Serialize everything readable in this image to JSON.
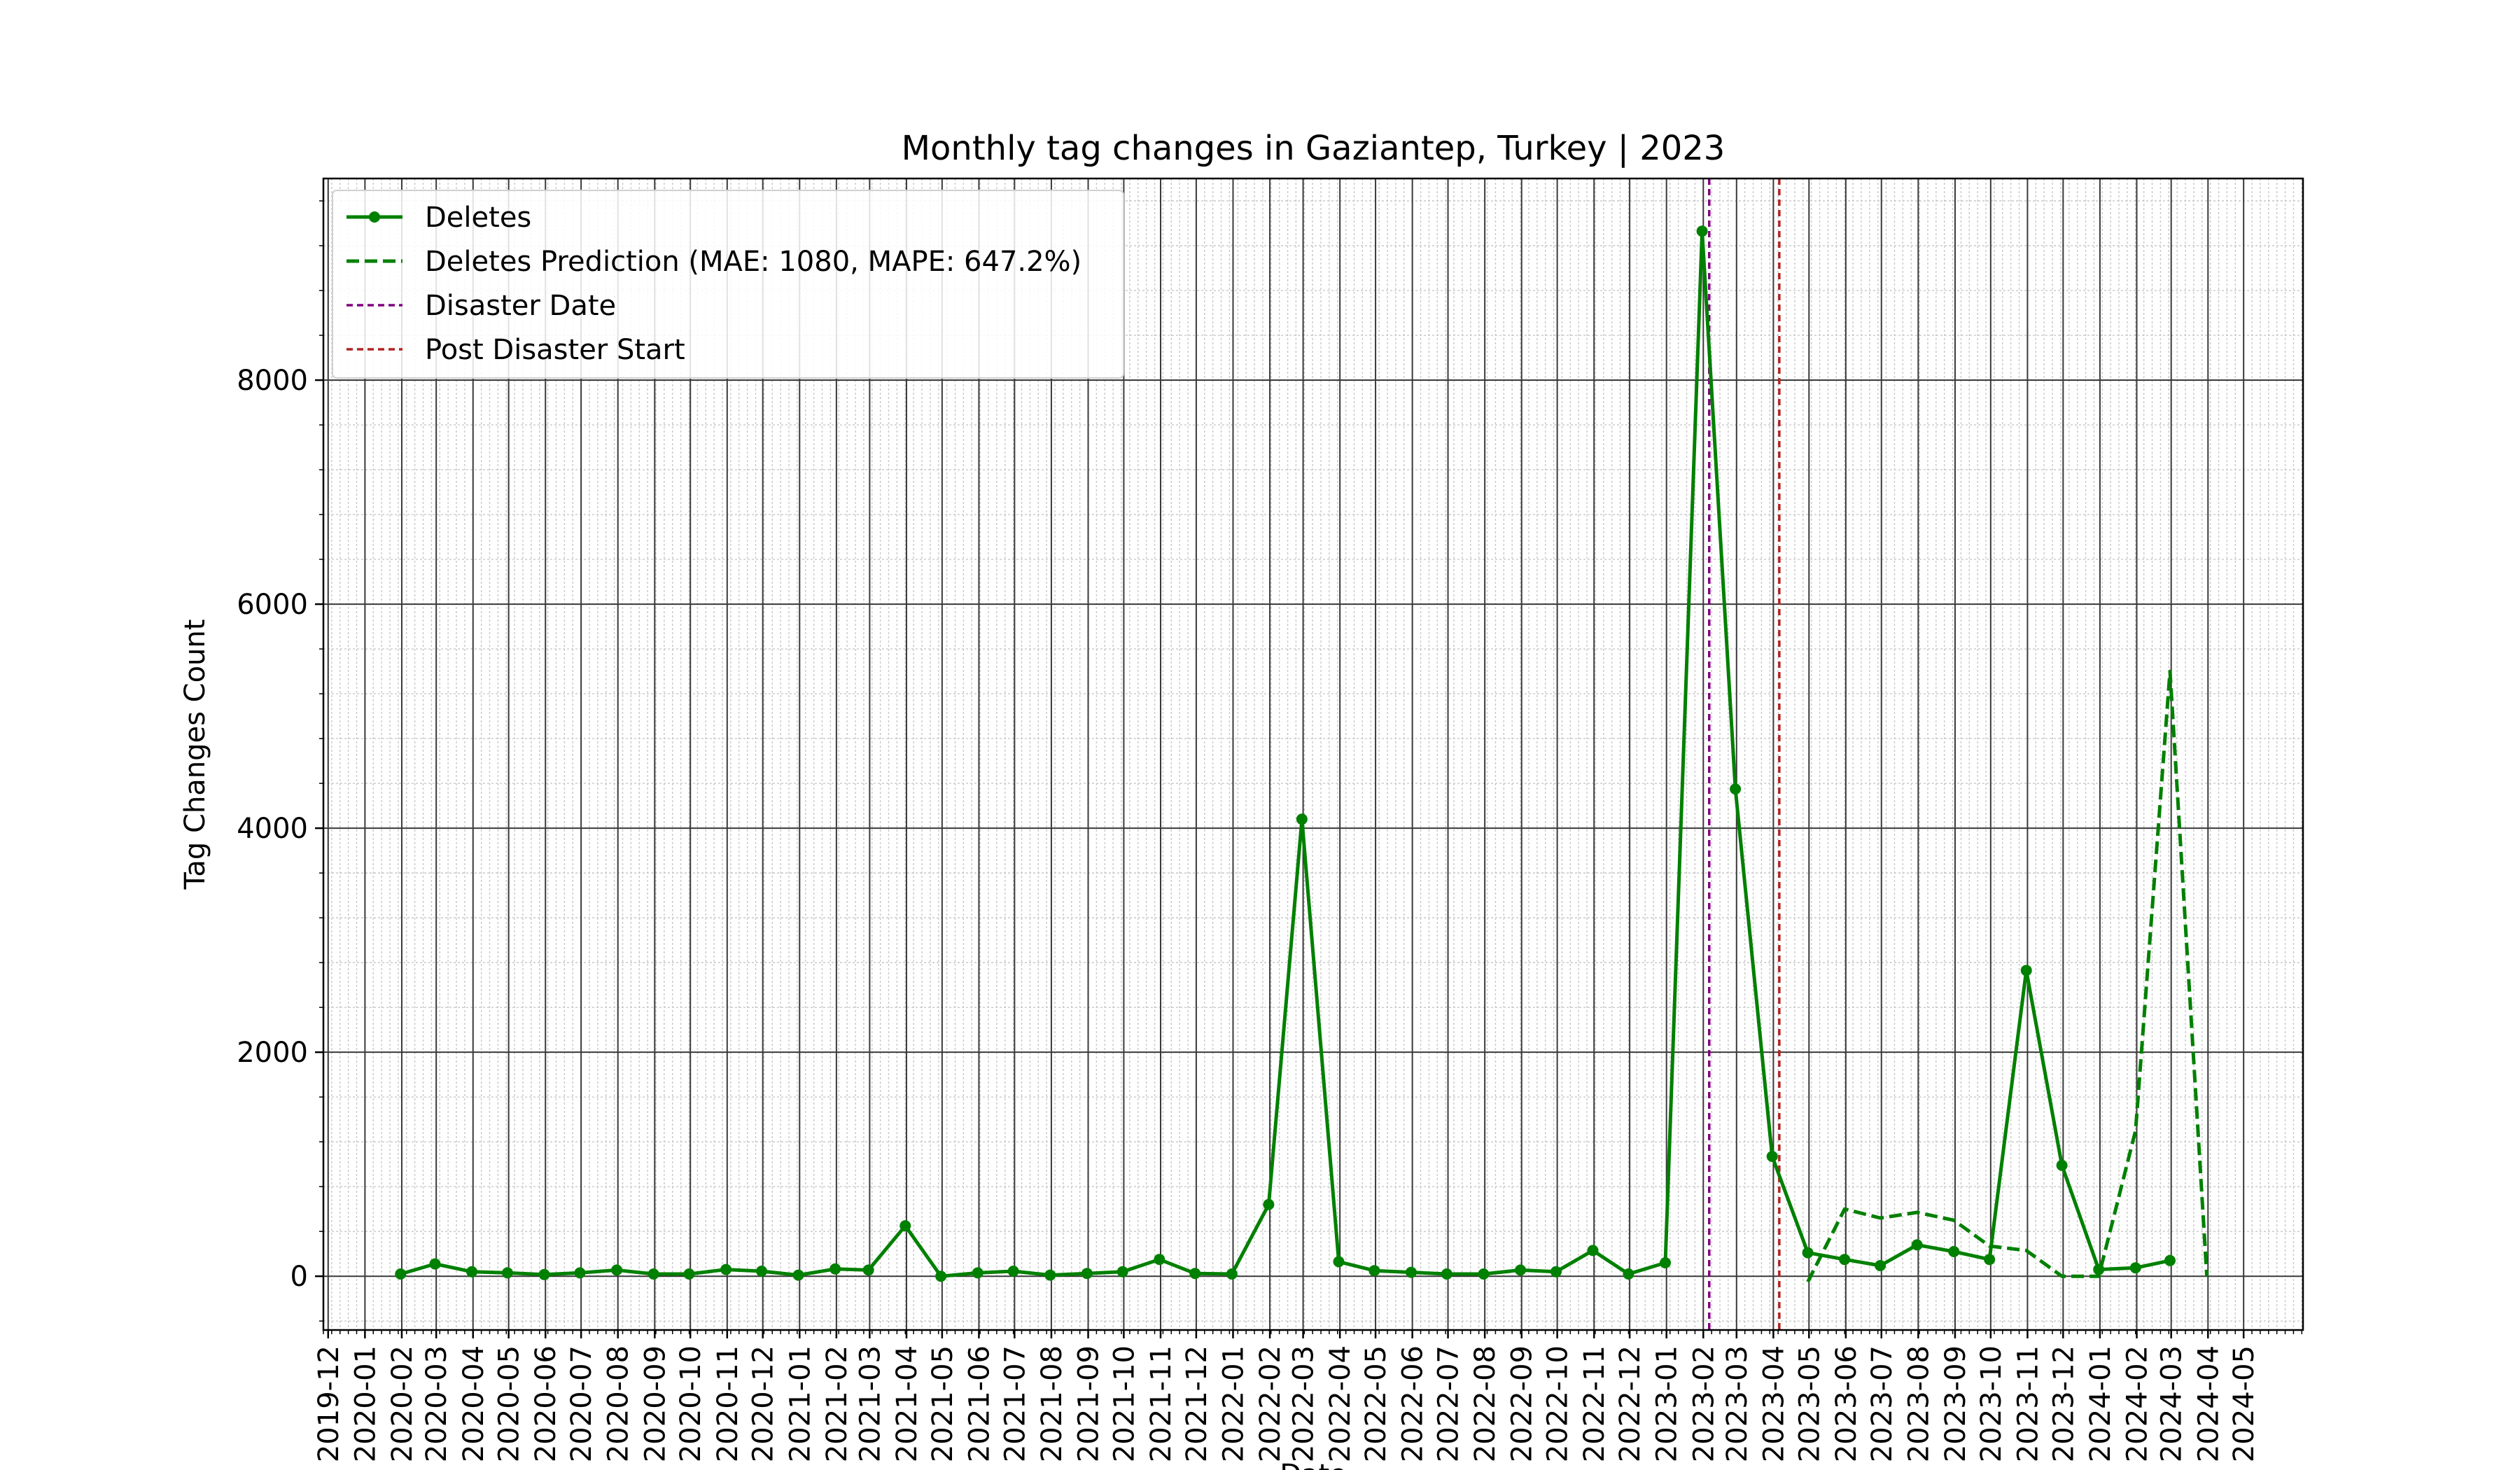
{
  "chart_data": {
    "type": "line",
    "title": "Monthly tag changes in Gaziantep, Turkey | 2023",
    "xlabel": "Date",
    "ylabel": "Tag Changes Count",
    "xlim": [
      "2019-11-27",
      "2024-06-20"
    ],
    "ylim": [
      -480,
      9800
    ],
    "x_ticks": [
      "2019-12",
      "2020-01",
      "2020-02",
      "2020-03",
      "2020-04",
      "2020-05",
      "2020-06",
      "2020-07",
      "2020-08",
      "2020-09",
      "2020-10",
      "2020-11",
      "2020-12",
      "2021-01",
      "2021-02",
      "2021-03",
      "2021-04",
      "2021-05",
      "2021-06",
      "2021-07",
      "2021-08",
      "2021-09",
      "2021-10",
      "2021-11",
      "2021-12",
      "2022-01",
      "2022-02",
      "2022-03",
      "2022-04",
      "2022-05",
      "2022-06",
      "2022-07",
      "2022-08",
      "2022-09",
      "2022-10",
      "2022-11",
      "2022-12",
      "2023-01",
      "2023-02",
      "2023-03",
      "2023-04",
      "2023-05",
      "2023-06",
      "2023-07",
      "2023-08",
      "2023-09",
      "2023-10",
      "2023-11",
      "2023-12",
      "2024-01",
      "2024-02",
      "2024-03",
      "2024-04",
      "2024-05"
    ],
    "y_ticks": [
      0,
      2000,
      4000,
      6000,
      8000
    ],
    "grid": true,
    "legend_position": "top-left",
    "series": [
      {
        "name": "Deletes",
        "color": "#008000",
        "style": "solid-markers",
        "points": [
          {
            "x": "2020-01-31",
            "y": 20
          },
          {
            "x": "2020-02-29",
            "y": 110
          },
          {
            "x": "2020-03-31",
            "y": 40
          },
          {
            "x": "2020-04-30",
            "y": 30
          },
          {
            "x": "2020-05-31",
            "y": 15
          },
          {
            "x": "2020-06-30",
            "y": 30
          },
          {
            "x": "2020-07-31",
            "y": 55
          },
          {
            "x": "2020-08-31",
            "y": 20
          },
          {
            "x": "2020-09-30",
            "y": 20
          },
          {
            "x": "2020-10-31",
            "y": 60
          },
          {
            "x": "2020-11-30",
            "y": 45
          },
          {
            "x": "2020-12-31",
            "y": 10
          },
          {
            "x": "2021-01-31",
            "y": 65
          },
          {
            "x": "2021-02-28",
            "y": 55
          },
          {
            "x": "2021-03-31",
            "y": 450
          },
          {
            "x": "2021-04-30",
            "y": 0
          },
          {
            "x": "2021-05-31",
            "y": 30
          },
          {
            "x": "2021-06-30",
            "y": 45
          },
          {
            "x": "2021-07-31",
            "y": 10
          },
          {
            "x": "2021-08-31",
            "y": 25
          },
          {
            "x": "2021-09-30",
            "y": 40
          },
          {
            "x": "2021-10-31",
            "y": 150
          },
          {
            "x": "2021-11-30",
            "y": 25
          },
          {
            "x": "2021-12-31",
            "y": 20
          },
          {
            "x": "2022-01-31",
            "y": 640
          },
          {
            "x": "2022-02-28",
            "y": 4080
          },
          {
            "x": "2022-03-31",
            "y": 130
          },
          {
            "x": "2022-04-30",
            "y": 50
          },
          {
            "x": "2022-05-31",
            "y": 35
          },
          {
            "x": "2022-06-30",
            "y": 20
          },
          {
            "x": "2022-07-31",
            "y": 20
          },
          {
            "x": "2022-08-31",
            "y": 55
          },
          {
            "x": "2022-09-30",
            "y": 40
          },
          {
            "x": "2022-10-31",
            "y": 230
          },
          {
            "x": "2022-11-30",
            "y": 20
          },
          {
            "x": "2022-12-31",
            "y": 120
          },
          {
            "x": "2023-01-31",
            "y": 9330
          },
          {
            "x": "2023-02-28",
            "y": 4350
          },
          {
            "x": "2023-03-31",
            "y": 1070
          },
          {
            "x": "2023-04-30",
            "y": 210
          },
          {
            "x": "2023-05-31",
            "y": 150
          },
          {
            "x": "2023-06-30",
            "y": 95
          },
          {
            "x": "2023-07-31",
            "y": 280
          },
          {
            "x": "2023-08-31",
            "y": 220
          },
          {
            "x": "2023-09-30",
            "y": 150
          },
          {
            "x": "2023-10-31",
            "y": 2730
          },
          {
            "x": "2023-11-30",
            "y": 990
          },
          {
            "x": "2023-12-31",
            "y": 60
          },
          {
            "x": "2024-01-31",
            "y": 75
          },
          {
            "x": "2024-02-29",
            "y": 140
          }
        ]
      },
      {
        "name": "Deletes Prediction (MAE: 1080, MAPE: 647.2%)",
        "color": "#008000",
        "style": "dashed",
        "points": [
          {
            "x": "2023-04-30",
            "y": -50
          },
          {
            "x": "2023-05-31",
            "y": 600
          },
          {
            "x": "2023-06-30",
            "y": 520
          },
          {
            "x": "2023-07-31",
            "y": 570
          },
          {
            "x": "2023-08-31",
            "y": 500
          },
          {
            "x": "2023-09-30",
            "y": 270
          },
          {
            "x": "2023-10-31",
            "y": 230
          },
          {
            "x": "2023-11-30",
            "y": 0
          },
          {
            "x": "2023-12-31",
            "y": 0
          },
          {
            "x": "2024-01-31",
            "y": 1300
          },
          {
            "x": "2024-02-29",
            "y": 5400
          },
          {
            "x": "2024-03-31",
            "y": 0
          }
        ]
      }
    ],
    "reference_lines": [
      {
        "name": "Disaster Date",
        "x": "2023-02-06",
        "color": "#800080"
      },
      {
        "name": "Post Disaster Start",
        "x": "2023-04-06",
        "color": "#b22222"
      }
    ]
  }
}
